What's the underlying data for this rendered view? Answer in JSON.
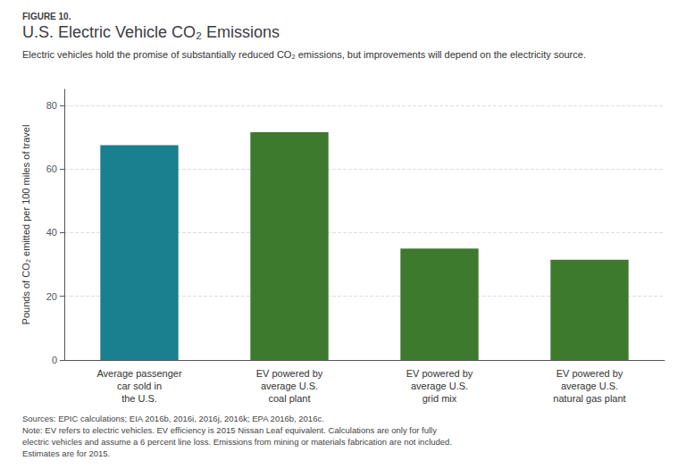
{
  "chart_data": {
    "type": "bar",
    "title": "U.S. Electric Vehicle CO₂ Emissions",
    "subtitle": "Electric vehicles hold the promise of substantially reduced CO₂ emissions, but improvements will depend on the electricity source.",
    "annotations": [
      "FIGURE 10.",
      "Sources: EPIC calculations; EIA 2016b, 2016i, 2016j, 2016k; EPA 2016b, 2016c.\nNote: EV refers to electric vehicles. EV efficiency is 2015 Nissan Leaf equivalent. Calculations are only for fully\nelectric vehicles and assume a 6 percent line loss. Emissions from mining or materials fabrication are not included.\nEstimates are for 2015."
    ],
    "categories": [
      "Average passenger\ncar sold in\nthe U.S.",
      "EV powered by\naverage U.S.\ncoal plant",
      "EV powered by\naverage U.S.\ngrid mix",
      "EV powered by\naverage U.S.\nnatural gas plant"
    ],
    "values": [
      67.5,
      71.5,
      35.0,
      31.5
    ],
    "colors": [
      "#1a7f8e",
      "#3d7a2e",
      "#3d7a2e",
      "#3d7a2e"
    ],
    "ylabel": "Pounds of CO₂ emitted per 100 miles of travel",
    "ylim": [
      0,
      85
    ],
    "yticks": [
      0,
      20,
      40,
      60,
      80
    ],
    "grid": true
  }
}
